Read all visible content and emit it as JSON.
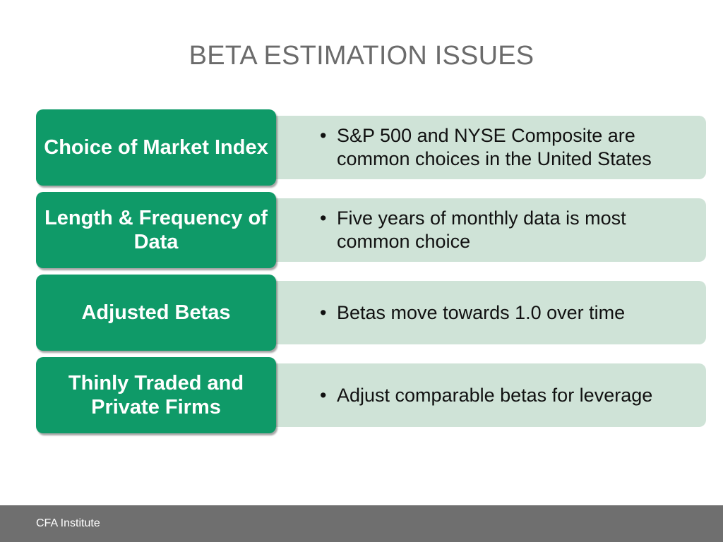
{
  "slide": {
    "title": "BETA ESTIMATION ISSUES"
  },
  "rows": [
    {
      "label": "Choice of Market Index",
      "bullet": "S&P 500 and NYSE Composite are common choices in the United States"
    },
    {
      "label": "Length & Frequency of Data",
      "bullet": "Five years of monthly data is most common choice"
    },
    {
      "label": "Adjusted Betas",
      "bullet": "Betas move towards 1.0 over time"
    },
    {
      "label": "Thinly Traded and Private Firms",
      "bullet": "Adjust comparable betas for leverage"
    }
  ],
  "bullet_glyph": "•",
  "footer": {
    "text": "CFA Institute"
  },
  "colors": {
    "label_green": "#0f9a68",
    "detail_bg": "#cfe3d7",
    "title_gray": "#6b6b6b",
    "footer_gray": "#6f6f6f"
  }
}
